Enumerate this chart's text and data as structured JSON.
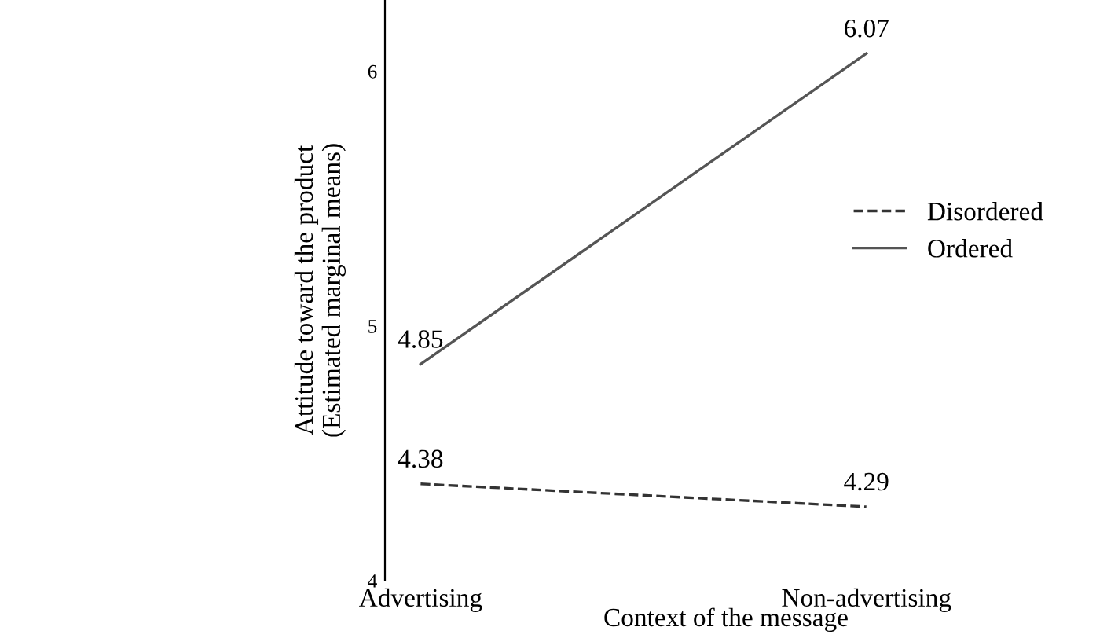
{
  "chart_data": {
    "type": "line",
    "xlabel": "Context of the message",
    "ylabel": "Attitude toward the product\n(Estimated marginal means)",
    "categories": [
      "Advertising",
      "Non-advertising"
    ],
    "series": [
      {
        "name": "Disordered",
        "color": "#333333",
        "line_style": "dashed",
        "values": [
          4.38,
          4.29
        ]
      },
      {
        "name": "Ordered",
        "color": "#555555",
        "line_style": "solid",
        "values": [
          4.85,
          6.07
        ]
      }
    ],
    "ylim": [
      4,
      6.28
    ],
    "yticks": [
      4,
      5,
      6
    ],
    "data_labels": true,
    "legend": "right",
    "grid": false,
    "marker": "none"
  }
}
